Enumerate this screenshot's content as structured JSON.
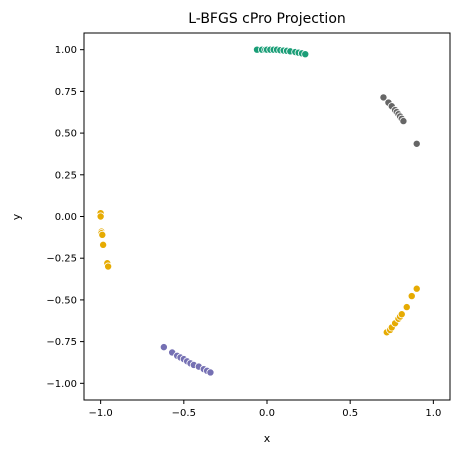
{
  "chart_data": {
    "type": "scatter",
    "title": "L-BFGS cPro Projection",
    "xlabel": "x",
    "ylabel": "y",
    "xlim": [
      -1.1,
      1.1
    ],
    "ylim": [
      -1.1,
      1.1
    ],
    "xticks": [
      -1.0,
      -0.5,
      0.0,
      0.5,
      1.0
    ],
    "xtick_labels": [
      "−1.0",
      "−0.5",
      "0.0",
      "0.5",
      "1.0"
    ],
    "yticks": [
      1.0,
      0.75,
      0.5,
      0.25,
      0.0,
      -0.25,
      -0.5,
      -0.75,
      -1.0
    ],
    "ytick_labels": [
      "1.00",
      "0.75",
      "0.50",
      "0.25",
      "0.00",
      "−0.25",
      "−0.50",
      "−0.75",
      "−1.00"
    ],
    "grid": false,
    "series": [
      {
        "color": "#1b9e77",
        "points": [
          [
            -0.06,
            1.0
          ],
          [
            -0.03,
            1.0
          ],
          [
            -0.01,
            1.0
          ],
          [
            0.0,
            1.0
          ],
          [
            0.02,
            1.0
          ],
          [
            0.04,
            1.0
          ],
          [
            0.06,
            1.0
          ],
          [
            0.08,
            0.997
          ],
          [
            0.1,
            0.995
          ],
          [
            0.12,
            0.993
          ],
          [
            0.14,
            0.99
          ],
          [
            0.17,
            0.986
          ],
          [
            0.19,
            0.982
          ],
          [
            0.21,
            0.978
          ],
          [
            0.23,
            0.973
          ]
        ]
      },
      {
        "color": "#666666",
        "points": [
          [
            0.7,
            0.714
          ],
          [
            0.73,
            0.683
          ],
          [
            0.75,
            0.661
          ],
          [
            0.77,
            0.638
          ],
          [
            0.78,
            0.626
          ],
          [
            0.79,
            0.613
          ],
          [
            0.8,
            0.6
          ],
          [
            0.81,
            0.586
          ],
          [
            0.82,
            0.572
          ],
          [
            0.9,
            0.436
          ]
        ]
      },
      {
        "color": "#e6ab02",
        "points": [
          [
            -1.0,
            0.02
          ],
          [
            -1.0,
            0.0
          ],
          [
            -0.995,
            -0.09
          ],
          [
            -0.995,
            -0.1
          ],
          [
            -0.99,
            -0.11
          ],
          [
            -0.985,
            -0.17
          ],
          [
            -0.96,
            -0.28
          ],
          [
            -0.955,
            -0.3
          ]
        ]
      },
      {
        "color": "#e6ab02",
        "points": [
          [
            0.72,
            -0.694
          ],
          [
            0.74,
            -0.68
          ],
          [
            0.75,
            -0.665
          ],
          [
            0.77,
            -0.64
          ],
          [
            0.79,
            -0.613
          ],
          [
            0.8,
            -0.6
          ],
          [
            0.81,
            -0.586
          ],
          [
            0.84,
            -0.543
          ],
          [
            0.87,
            -0.477
          ],
          [
            0.9,
            -0.433
          ]
        ]
      },
      {
        "color": "#7570b3",
        "points": [
          [
            -0.62,
            -0.783
          ],
          [
            -0.57,
            -0.815
          ],
          [
            -0.54,
            -0.835
          ],
          [
            -0.52,
            -0.845
          ],
          [
            -0.5,
            -0.855
          ],
          [
            -0.48,
            -0.868
          ],
          [
            -0.46,
            -0.88
          ],
          [
            -0.44,
            -0.89
          ],
          [
            -0.41,
            -0.9
          ],
          [
            -0.38,
            -0.915
          ],
          [
            -0.36,
            -0.925
          ],
          [
            -0.34,
            -0.935
          ]
        ]
      }
    ]
  }
}
